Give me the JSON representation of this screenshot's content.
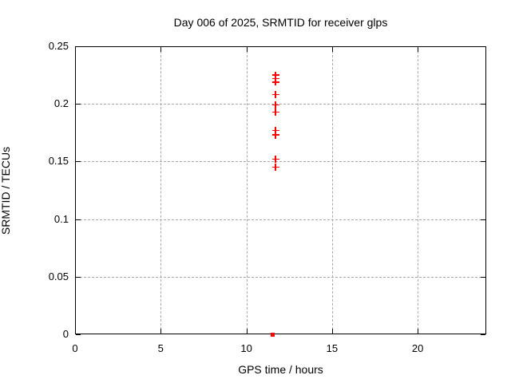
{
  "title": "Day 006 of 2025, SRMTID for receiver glps",
  "colors": {
    "marker": "#ff0000",
    "grid": "#a8a8a8",
    "axis": "#000000",
    "background": "#ffffff",
    "text": "#000000"
  },
  "chart_data": {
    "type": "scatter",
    "title": "Day 006 of 2025, SRMTID for receiver glps",
    "xlabel": "GPS time / hours",
    "ylabel": "SRMTID / TECUs",
    "xlim": [
      0,
      24
    ],
    "ylim": [
      0,
      0.25
    ],
    "x_tick_values": [
      0,
      5,
      10,
      15,
      20
    ],
    "x_tick_labels": [
      "0",
      "5",
      "10",
      "15",
      "20"
    ],
    "y_tick_values": [
      0,
      0.05,
      0.1,
      0.15,
      0.2,
      0.25
    ],
    "y_tick_labels": [
      "0",
      "0.05",
      "0.1",
      "0.15",
      "0.2",
      "0.25"
    ],
    "grid": true,
    "legend": "none",
    "series": [
      {
        "name": "srmtid-points",
        "marker": "plus",
        "color": "#ff0000",
        "points": [
          [
            11.7,
            0.225
          ],
          [
            11.7,
            0.222
          ],
          [
            11.7,
            0.219
          ],
          [
            11.7,
            0.208
          ],
          [
            11.7,
            0.199
          ],
          [
            11.7,
            0.193
          ],
          [
            11.7,
            0.177
          ],
          [
            11.7,
            0.173
          ],
          [
            11.7,
            0.152
          ],
          [
            11.7,
            0.145
          ]
        ]
      },
      {
        "name": "zero-baseline-point",
        "marker": "square",
        "color": "#ff0000",
        "points": [
          [
            11.55,
            0
          ]
        ]
      }
    ]
  }
}
